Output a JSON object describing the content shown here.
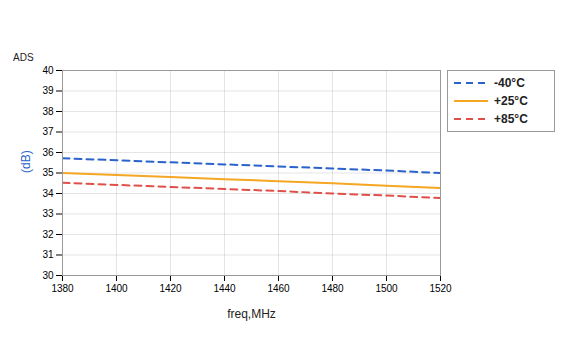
{
  "chart_data": {
    "type": "line",
    "title": "ADS",
    "x_label": "freq,MHz",
    "y_label": "(dB)",
    "y_label_color": "#2a63c9",
    "x": [
      1380,
      1400,
      1420,
      1440,
      1460,
      1480,
      1500,
      1520
    ],
    "series": [
      {
        "name": "-40°C",
        "color": "#2a63c9",
        "line_style": "dashed",
        "values": [
          35.72,
          35.62,
          35.52,
          35.42,
          35.32,
          35.22,
          35.12,
          35.0
        ]
      },
      {
        "name": "+25°C",
        "color": "#f5a623",
        "line_style": "solid",
        "values": [
          35.0,
          34.9,
          34.8,
          34.7,
          34.6,
          34.5,
          34.38,
          34.27
        ]
      },
      {
        "name": "+85°C",
        "color": "#e0504a",
        "line_style": "dashed",
        "values": [
          34.52,
          34.42,
          34.32,
          34.22,
          34.12,
          34.0,
          33.9,
          33.78
        ]
      }
    ],
    "xlim": [
      1380,
      1520
    ],
    "xticks": [
      1380,
      1400,
      1420,
      1440,
      1460,
      1480,
      1500,
      1520
    ],
    "ylim": [
      30,
      40
    ],
    "yticks": [
      30,
      31,
      32,
      33,
      34,
      35,
      36,
      37,
      38,
      39,
      40
    ],
    "grid": true,
    "legend": "right"
  }
}
